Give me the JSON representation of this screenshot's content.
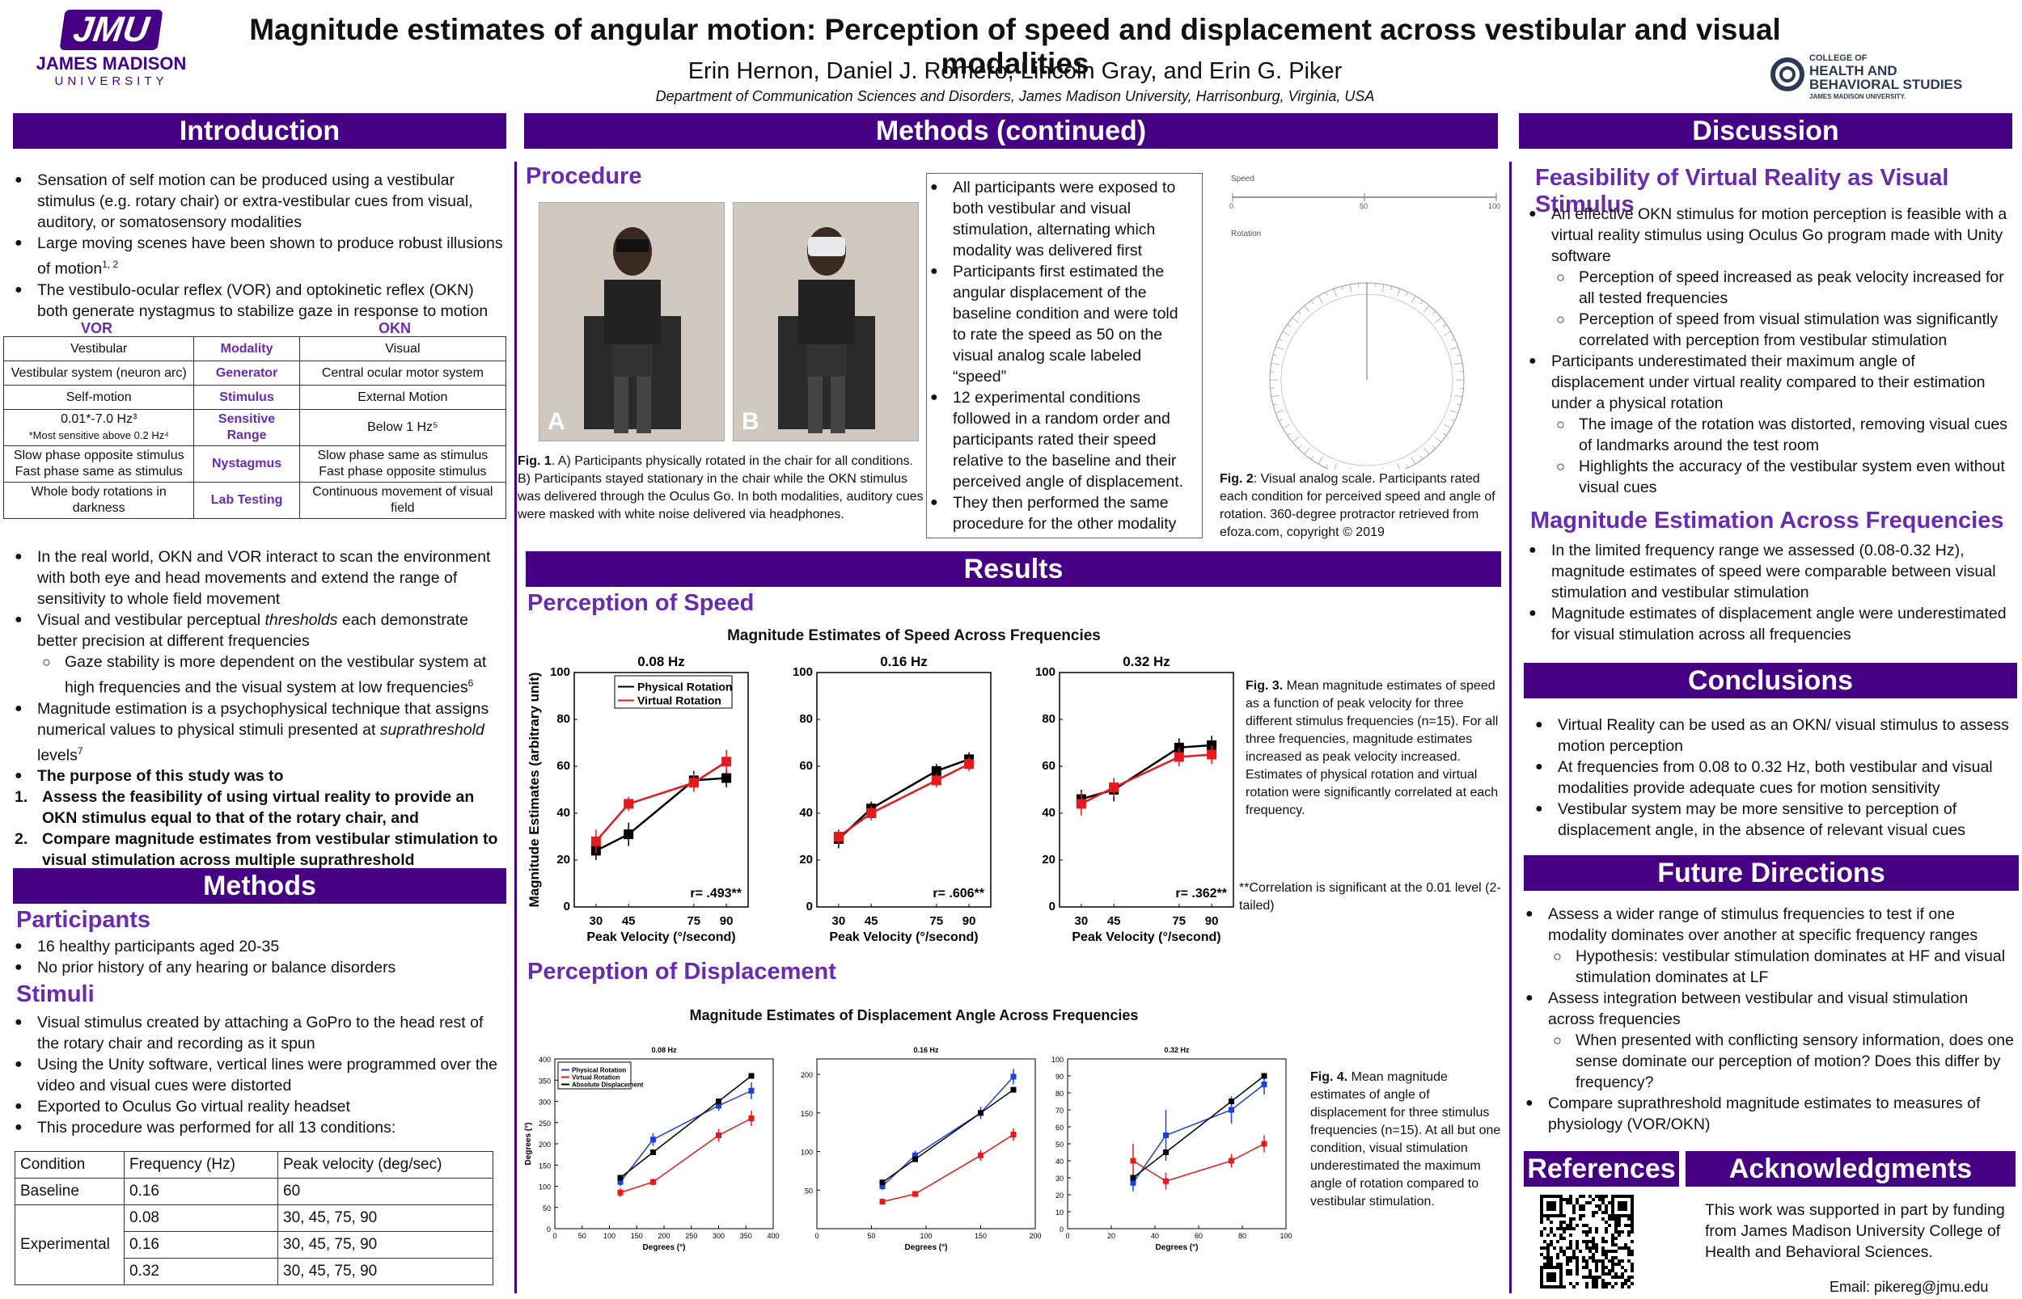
{
  "header": {
    "logo_text": "JMU",
    "logo_name": "JAMES MADISON",
    "logo_sub": "UNIVERSITY",
    "title": "Magnitude estimates of angular motion: Perception of speed and displacement across vestibular and visual modalities",
    "authors": "Erin Hernon, Daniel J. Romero, Lincoln Gray, and Erin G. Piker",
    "affiliation": "Department of Communication Sciences and Disorders, James Madison University, Harrisonburg, Virginia, USA",
    "college_l1": "COLLEGE OF",
    "college_l2": "HEALTH AND",
    "college_l3": "BEHAVIORAL STUDIES",
    "college_l4": "JAMES MADISON UNIVERSITY."
  },
  "intro": {
    "header": "Introduction",
    "b1": "Sensation of self motion can be produced using a vestibular stimulus (e.g. rotary chair) or extra-vestibular cues from visual, auditory, or somatosensory modalities",
    "b2": "Large moving scenes have been shown to produce robust illusions of motion",
    "b2_sup": "1, 2",
    "b3": "The vestibulo-ocular reflex (VOR) and optokinetic reflex (OKN) both generate nystagmus to stabilize gaze in response to motion",
    "vor": "VOR",
    "okn": "OKN",
    "table": [
      {
        "l": "Vestibular",
        "m": "Modality",
        "r": "Visual"
      },
      {
        "l": "Vestibular system (neuron arc)",
        "m": "Generator",
        "r": "Central ocular motor system"
      },
      {
        "l": "Self-motion",
        "m": "Stimulus",
        "r": "External Motion"
      },
      {
        "l": "0.01*-7.0 Hz³",
        "l2": "*Most sensitive above 0.2 Hz⁴",
        "m": "Sensitive Range",
        "r": "Below 1 Hz⁵"
      },
      {
        "l": "Slow phase opposite stimulus",
        "l2": "Fast phase same as stimulus",
        "m": "Nystagmus",
        "r": "Slow phase same as stimulus",
        "r2": "Fast phase opposite stimulus"
      },
      {
        "l": "Whole body rotations in darkness",
        "m": "Lab Testing",
        "r": "Continuous movement of visual field"
      }
    ],
    "b4": "In the real world, OKN and VOR interact to scan the environment with both eye and head movements and extend the range of sensitivity to whole field movement",
    "b5a": "Visual and vestibular perceptual ",
    "b5i": "thresholds",
    "b5b": " each demonstrate better precision at different frequencies",
    "b5s": "Gaze stability is more dependent on the vestibular system at high frequencies and the visual system at low frequencies",
    "b5s_sup": "6",
    "b6a": "Magnitude estimation is a psychophysical technique that assigns numerical values to physical stimuli presented at ",
    "b6i": "suprathreshold",
    "b6b": " levels",
    "b6_sup": "7",
    "b7": "The purpose of this study was to",
    "n1": "Assess the feasibility of using virtual reality to provide an OKN stimulus equal to that of the rotary chair, and",
    "n2": "Compare magnitude estimates from vestibular stimulation to visual stimulation across multiple suprathreshold frequencies"
  },
  "methods": {
    "header": "Methods",
    "participants": "Participants",
    "p1": "16 healthy participants aged 20-35",
    "p2": "No prior history of any hearing or balance disorders",
    "stimuli": "Stimuli",
    "s1": "Visual stimulus created by attaching a GoPro to the head rest of the rotary chair and recording as it spun",
    "s2": "Using the Unity software, vertical lines were programmed over the video and visual cues were distorted",
    "s3": "Exported to Oculus Go virtual reality headset",
    "s4": "This procedure was performed for all 13 conditions:",
    "cond_head": [
      "Condition",
      "Frequency (Hz)",
      "Peak velocity (deg/sec)"
    ],
    "baseline": [
      "Baseline",
      "0.16",
      "60"
    ],
    "experimental": "Experimental",
    "exp_rows": [
      [
        "0.08",
        "30, 45, 75, 90"
      ],
      [
        "0.16",
        "30, 45, 75, 90"
      ],
      [
        "0.32",
        "30, 45, 75, 90"
      ]
    ]
  },
  "methods2": {
    "header": "Methods (continued)",
    "procedure": "Procedure",
    "photo_a": "A",
    "photo_b": "B",
    "fig1_lab": "Fig. 1",
    "fig1": ". A) Participants physically rotated in the chair for all conditions. B) Participants  stayed stationary in the chair while the OKN stimulus was delivered through the Oculus Go. In both modalities, auditory cues were masked with white noise delivered via headphones.",
    "pb1": "All participants were exposed to both vestibular and visual stimulation, alternating which modality was delivered first",
    "pb2": "Participants first estimated the angular displacement of the baseline condition and were told to rate the speed as 50 on the visual analog scale labeled “speed”",
    "pb3": "12 experimental conditions followed in a random order and participants rated their speed relative to the baseline and their perceived angle of displacement.",
    "pb4": "They then performed the same procedure for the other modality",
    "vas_speed": "Speed",
    "vas_rotation": "Rotation",
    "vas_0": "0",
    "vas_50": "50",
    "vas_100": "100",
    "fig2_lab": "Fig. 2",
    "fig2": ": Visual analog scale. Participants rated each condition for perceived speed and angle of rotation. 360-degree protractor retrieved from efoza.com, copyright © 2019"
  },
  "results": {
    "header": "Results",
    "speed_title": "Perception of Speed",
    "speed_chart_title": "Magnitude Estimates of Speed Across Frequencies",
    "fig3_lab": "Fig. 3.",
    "fig3": " Mean magnitude estimates of speed as a function of peak velocity for three different stimulus frequencies (n=15). For all three frequencies, magnitude estimates increased as peak velocity increased. Estimates of physical rotation and virtual rotation were significantly correlated at each frequency.",
    "corr_note": "**Correlation is significant at the 0.01 level (2-tailed)",
    "disp_title": "Perception of Displacement",
    "disp_chart_title": "Magnitude Estimates of Displacement Angle Across Frequencies",
    "fig4_lab": "Fig. 4.",
    "fig4": " Mean magnitude estimates of angle of displacement for three stimulus frequencies (n=15). At all but one condition, visual stimulation underestimated the maximum angle of rotation compared to vestibular stimulation."
  },
  "discussion": {
    "header": "Discussion",
    "h1": "Feasibility of Virtual Reality as Visual Stimulus",
    "d1": "An effective OKN stimulus for motion perception is feasible with a virtual reality stimulus using Oculus Go program made with Unity software",
    "d1a": "Perception of speed increased as peak velocity increased for all tested frequencies",
    "d1b": "Perception of speed from visual stimulation was significantly correlated with perception from vestibular stimulation",
    "d2": "Participants underestimated their maximum angle of displacement under virtual reality compared to their estimation under a physical rotation",
    "d2a": "The image of the rotation was distorted, removing visual cues of landmarks around the test room",
    "d2b": "Highlights the accuracy of the vestibular system even without visual cues",
    "h2": "Magnitude Estimation Across Frequencies",
    "d3": "In the limited frequency range we assessed (0.08-0.32 Hz), magnitude estimates of speed were comparable between visual stimulation and vestibular stimulation",
    "d4": "Magnitude estimates of displacement angle were underestimated for visual stimulation across all frequencies"
  },
  "conclusions": {
    "header": "Conclusions",
    "c1": "Virtual Reality can be used as an OKN/ visual  stimulus to assess motion perception",
    "c2": "At frequencies from 0.08 to 0.32 Hz, both vestibular and visual modalities provide adequate cues for motion sensitivity",
    "c3": "Vestibular system may be more sensitive to perception of displacement angle, in the absence of relevant visual cues"
  },
  "future": {
    "header": "Future Directions",
    "f1": "Assess a wider range of stimulus frequencies  to test if one modality dominates over another at specific frequency ranges",
    "f1a": "Hypothesis: vestibular stimulation dominates at HF and visual stimulation dominates at LF",
    "f2": "Assess integration between vestibular and visual stimulation across frequencies",
    "f2a": "When presented with conflicting sensory information, does one sense dominate our perception of motion?  Does this differ by frequency?",
    "f3": "Compare suprathreshold magnitude estimates to measures of physiology (VOR/OKN)"
  },
  "references": {
    "header": "References"
  },
  "acknowledgments": {
    "header": "Acknowledgments",
    "text": "This work was supported in part by funding from James Madison University College of Health and Behavioral Sciences.",
    "email": "Email: pikereg@jmu.edu"
  },
  "colors": {
    "purple": "#450084",
    "accent": "#6a2bb0",
    "black_series": "#000000",
    "red_series": "#e41a1c",
    "blue_series": "#1f3fe0"
  },
  "chart_data": [
    {
      "type": "line",
      "title": "0.08 Hz",
      "xlabel": "Peak Velocity (°/second)",
      "ylabel": "Magnitude Estimates (arbitrary unit)",
      "x": [
        30,
        45,
        75,
        90
      ],
      "xticks": [
        30,
        45,
        75,
        90
      ],
      "ylim": [
        0,
        100
      ],
      "yticks": [
        0,
        20,
        40,
        60,
        80,
        100
      ],
      "legend": "top-left",
      "annotation": "r= .493**",
      "series": [
        {
          "name": "Physical Rotation",
          "color": "#000000",
          "values": [
            24,
            31,
            54,
            55
          ],
          "err": [
            4,
            5,
            4,
            4
          ]
        },
        {
          "name": "Virtual Rotation",
          "color": "#e41a1c",
          "values": [
            28,
            44,
            53,
            62
          ],
          "err": [
            5,
            3,
            4,
            5
          ]
        }
      ]
    },
    {
      "type": "line",
      "title": "0.16 Hz",
      "xlabel": "Peak Velocity (°/second)",
      "x": [
        30,
        45,
        75,
        90
      ],
      "xticks": [
        30,
        45,
        75,
        90
      ],
      "ylim": [
        0,
        100
      ],
      "yticks": [
        0,
        20,
        40,
        60,
        80,
        100
      ],
      "annotation": "r= .606**",
      "series": [
        {
          "name": "Physical Rotation",
          "color": "#000000",
          "values": [
            29,
            42,
            58,
            63
          ],
          "err": [
            4,
            3,
            3,
            3
          ]
        },
        {
          "name": "Virtual Rotation",
          "color": "#e41a1c",
          "values": [
            30,
            40,
            54,
            61
          ],
          "err": [
            3,
            3,
            3,
            3
          ]
        }
      ]
    },
    {
      "type": "line",
      "title": "0.32 Hz",
      "xlabel": "Peak Velocity (°/second)",
      "x": [
        30,
        45,
        75,
        90
      ],
      "xticks": [
        30,
        45,
        75,
        90
      ],
      "ylim": [
        0,
        100
      ],
      "yticks": [
        0,
        20,
        40,
        60,
        80,
        100
      ],
      "annotation": "r= .362**",
      "series": [
        {
          "name": "Physical Rotation",
          "color": "#000000",
          "values": [
            46,
            50,
            68,
            69
          ],
          "err": [
            4,
            5,
            4,
            4
          ]
        },
        {
          "name": "Virtual Rotation",
          "color": "#e41a1c",
          "values": [
            44,
            51,
            64,
            65
          ],
          "err": [
            5,
            4,
            4,
            4
          ]
        }
      ]
    },
    {
      "type": "line",
      "title": "0.08 Hz",
      "xlabel": "Degrees (°)",
      "ylabel": "Degrees (°)",
      "x": [
        120,
        180,
        300,
        360
      ],
      "xlim": [
        0,
        400
      ],
      "xticks": [
        0,
        50,
        100,
        150,
        200,
        250,
        300,
        350,
        400
      ],
      "ylim": [
        0,
        400
      ],
      "yticks": [
        0,
        50,
        100,
        150,
        200,
        250,
        300,
        350,
        400
      ],
      "legend": "top-left",
      "series": [
        {
          "name": "Physical Rotation",
          "color": "#1f3fe0",
          "values": [
            110,
            210,
            290,
            325
          ],
          "err": [
            10,
            15,
            12,
            20
          ]
        },
        {
          "name": "Virtual Rotation",
          "color": "#e41a1c",
          "values": [
            85,
            110,
            220,
            260
          ],
          "err": [
            10,
            8,
            15,
            18
          ]
        },
        {
          "name": "Absolute Displacement",
          "color": "#000000",
          "values": [
            120,
            180,
            300,
            360
          ],
          "err": [
            0,
            0,
            0,
            0
          ]
        }
      ]
    },
    {
      "type": "line",
      "title": "0.16 Hz",
      "xlabel": "Degrees (°)",
      "x": [
        60,
        90,
        150,
        180
      ],
      "xlim": [
        0,
        200
      ],
      "xticks": [
        0,
        50,
        100,
        150,
        200
      ],
      "ylim": [
        0,
        220
      ],
      "yticks": [
        50,
        100,
        150,
        200
      ],
      "series": [
        {
          "name": "Physical Rotation",
          "color": "#1f3fe0",
          "values": [
            55,
            95,
            150,
            197
          ],
          "err": [
            5,
            6,
            8,
            10
          ]
        },
        {
          "name": "Virtual Rotation",
          "color": "#e41a1c",
          "values": [
            35,
            45,
            95,
            122
          ],
          "err": [
            4,
            4,
            7,
            8
          ]
        },
        {
          "name": "Absolute Displacement",
          "color": "#000000",
          "values": [
            60,
            90,
            150,
            180
          ],
          "err": [
            0,
            0,
            0,
            0
          ]
        }
      ]
    },
    {
      "type": "line",
      "title": "0.32 Hz",
      "xlabel": "Degrees (°)",
      "x": [
        30,
        45,
        75,
        90
      ],
      "xlim": [
        0,
        100
      ],
      "xticks": [
        0,
        20,
        40,
        60,
        80,
        100
      ],
      "ylim": [
        0,
        100
      ],
      "yticks": [
        0,
        10,
        20,
        30,
        40,
        50,
        60,
        70,
        80,
        90,
        100
      ],
      "series": [
        {
          "name": "Physical Rotation",
          "color": "#1f3fe0",
          "values": [
            27,
            55,
            70,
            85
          ],
          "err": [
            5,
            15,
            8,
            6
          ]
        },
        {
          "name": "Virtual Rotation",
          "color": "#e41a1c",
          "values": [
            40,
            28,
            40,
            50
          ],
          "err": [
            10,
            5,
            4,
            5
          ]
        },
        {
          "name": "Absolute Displacement",
          "color": "#000000",
          "values": [
            30,
            45,
            75,
            90
          ],
          "err": [
            0,
            0,
            0,
            0
          ]
        }
      ]
    }
  ]
}
